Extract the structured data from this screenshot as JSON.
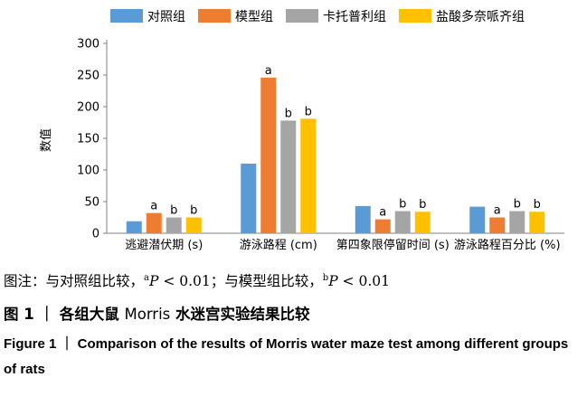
{
  "chart_data": {
    "type": "bar",
    "ylabel": "数值",
    "ylim": [
      0,
      300
    ],
    "yticks": [
      0,
      50,
      100,
      150,
      200,
      250,
      300
    ],
    "grid": false,
    "legend_position": "top",
    "categories": [
      "逃避潜伏期 (s)",
      "游泳路程 (cm)",
      "第四象限停留时间 (s)",
      "游泳路程百分比 (%)"
    ],
    "series": [
      {
        "name": "对照组",
        "color": "#5b9bd5",
        "values": [
          19,
          110,
          43,
          42
        ],
        "labels": [
          "",
          "",
          "",
          ""
        ]
      },
      {
        "name": "模型组",
        "color": "#ed7d31",
        "values": [
          32,
          246,
          22,
          25
        ],
        "labels": [
          "a",
          "a",
          "a",
          "a"
        ]
      },
      {
        "name": "卡托普利组",
        "color": "#a5a5a5",
        "values": [
          25,
          178,
          35,
          35
        ],
        "labels": [
          "b",
          "b",
          "b",
          "b"
        ]
      },
      {
        "name": "盐酸多奈哌齐组",
        "color": "#ffc000",
        "values": [
          25,
          181,
          34,
          34
        ],
        "labels": [
          "b",
          "b",
          "b",
          "b"
        ]
      }
    ]
  },
  "note": {
    "prefix": "图注：与对照组比较，",
    "sup_a": "a",
    "p_a": "P",
    "val_a": " < 0.01；与模型组比较，",
    "sup_b": "b",
    "p_b": "P",
    "val_b": " < 0.01"
  },
  "caption_cn": {
    "label": "图 1 ｜",
    "text_before": "各组大鼠 ",
    "latin": "Morris",
    "text_after": " 水迷宫实验结果比较"
  },
  "caption_en": "Figure 1 ｜ Comparison of the results of Morris water maze test among different groups of rats"
}
